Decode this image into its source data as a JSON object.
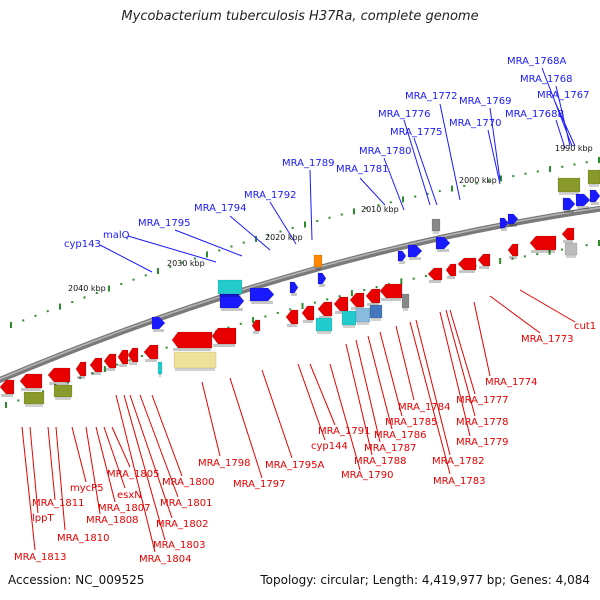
{
  "title": "Mycobacterium tuberculosis H37Ra, complete genome",
  "footer": {
    "accession": "Accession: NC_009525",
    "topology": "Topology: circular; Length: 4,419,977 bp; Genes: 4,084"
  },
  "colors": {
    "forward": "#1a1aff",
    "reverse": "#e80000",
    "backbone": "#777777",
    "tick": "#2e8b2e",
    "cyan": "#22cccc",
    "olive": "#8a9a2a",
    "orange": "#ff8800",
    "khaki": "#eee29a",
    "gray": "#888888"
  },
  "kbp_markers": [
    "2040 kbp",
    "2030 kbp",
    "2020 kbp",
    "2010 kbp",
    "2000 kbp",
    "1990 kbp"
  ],
  "labels_forward": [
    "cyp143",
    "malQ",
    "MRA_1795",
    "MRA_1794",
    "MRA_1792",
    "MRA_1789",
    "MRA_1781",
    "MRA_1780",
    "MRA_1776",
    "MRA_1775",
    "MRA_1772",
    "MRA_1770",
    "MRA_1769",
    "MRA_1768B",
    "MRA_1768",
    "MRA_1768A",
    "MRA_1767"
  ],
  "labels_reverse": [
    "MRA_1813",
    "lppT",
    "MRA_1811",
    "MRA_1810",
    "mycP5",
    "MRA_1808",
    "MRA_1807",
    "esxN",
    "MRA_1805",
    "MRA_1804",
    "MRA_1803",
    "MRA_1802",
    "MRA_1801",
    "MRA_1800",
    "MRA_1798",
    "MRA_1797",
    "MRA_1795A",
    "cyp144",
    "MRA_1791",
    "MRA_1790",
    "MRA_1788",
    "MRA_1787",
    "MRA_1786",
    "MRA_1785",
    "MRA_1784",
    "MRA_1783",
    "MRA_1782",
    "MRA_1779",
    "MRA_1778",
    "MRA_1777",
    "MRA_1774",
    "MRA_1773",
    "cut1"
  ]
}
